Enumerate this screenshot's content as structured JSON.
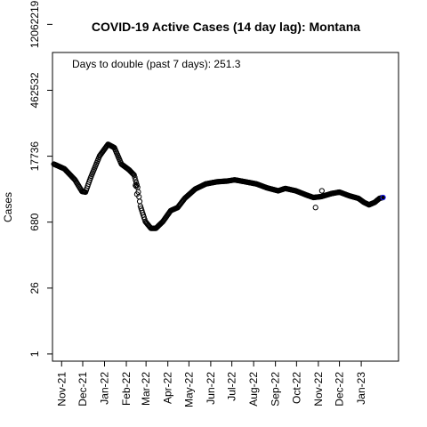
{
  "chart_data": {
    "type": "scatter",
    "title": "COVID-19 Active Cases (14 day lag): Montana",
    "annotation": "Days to double (past 7 days): 251.3",
    "xlabel": "",
    "ylabel": "Cases",
    "y_scale": "log",
    "ylim": [
      0.7,
      3000000
    ],
    "y_ticks": [
      1,
      26,
      680,
      17736,
      462532,
      12062219
    ],
    "x_range": [
      "2021-10-19",
      "2023-02-23"
    ],
    "x_ticks": [
      {
        "date": "2021-11-01",
        "label": "Nov-21"
      },
      {
        "date": "2021-12-01",
        "label": "Dec-21"
      },
      {
        "date": "2022-01-01",
        "label": "Jan-22"
      },
      {
        "date": "2022-02-01",
        "label": "Feb-22"
      },
      {
        "date": "2022-03-01",
        "label": "Mar-22"
      },
      {
        "date": "2022-04-01",
        "label": "Apr-22"
      },
      {
        "date": "2022-05-01",
        "label": "May-22"
      },
      {
        "date": "2022-06-01",
        "label": "Jun-22"
      },
      {
        "date": "2022-07-01",
        "label": "Jul-22"
      },
      {
        "date": "2022-08-01",
        "label": "Aug-22"
      },
      {
        "date": "2022-09-01",
        "label": "Sep-22"
      },
      {
        "date": "2022-10-01",
        "label": "Oct-22"
      },
      {
        "date": "2022-11-01",
        "label": "Nov-22"
      },
      {
        "date": "2022-12-01",
        "label": "Dec-22"
      },
      {
        "date": "2023-01-01",
        "label": "Jan-23"
      }
    ],
    "grid": false,
    "marker_color": "#000000",
    "last_point_color": "#1a1aff",
    "anchors": [
      [
        "2021-10-21",
        12000
      ],
      [
        "2021-11-05",
        9500
      ],
      [
        "2021-11-20",
        5500
      ],
      [
        "2021-11-30",
        3100
      ],
      [
        "2021-12-05",
        3000
      ],
      [
        "2021-12-12",
        6000
      ],
      [
        "2021-12-25",
        18000
      ],
      [
        "2022-01-06",
        32000
      ],
      [
        "2022-01-15",
        27000
      ],
      [
        "2022-01-25",
        12000
      ],
      [
        "2022-02-05",
        9000
      ],
      [
        "2022-02-12",
        7000
      ],
      [
        "2022-02-17",
        3800
      ],
      [
        "2022-02-21",
        1500
      ],
      [
        "2022-02-28",
        700
      ],
      [
        "2022-03-08",
        500
      ],
      [
        "2022-03-15",
        500
      ],
      [
        "2022-03-25",
        700
      ],
      [
        "2022-04-05",
        1200
      ],
      [
        "2022-04-15",
        1400
      ],
      [
        "2022-04-25",
        2200
      ],
      [
        "2022-05-10",
        3500
      ],
      [
        "2022-05-25",
        4500
      ],
      [
        "2022-06-10",
        5000
      ],
      [
        "2022-06-25",
        5200
      ],
      [
        "2022-07-05",
        5500
      ],
      [
        "2022-07-20",
        5000
      ],
      [
        "2022-08-05",
        4500
      ],
      [
        "2022-08-20",
        3700
      ],
      [
        "2022-09-05",
        3200
      ],
      [
        "2022-09-15",
        3600
      ],
      [
        "2022-09-30",
        3200
      ],
      [
        "2022-10-15",
        2600
      ],
      [
        "2022-10-25",
        2300
      ],
      [
        "2022-11-05",
        2400
      ],
      [
        "2022-11-20",
        2800
      ],
      [
        "2022-12-01",
        3000
      ],
      [
        "2022-12-15",
        2500
      ],
      [
        "2022-12-28",
        2200
      ],
      [
        "2023-01-05",
        1800
      ],
      [
        "2023-01-12",
        1600
      ],
      [
        "2023-01-20",
        1800
      ],
      [
        "2023-01-27",
        2200
      ],
      [
        "2023-02-01",
        2300
      ]
    ],
    "outliers": [
      [
        "2022-02-14",
        4200
      ],
      [
        "2022-02-15",
        4000
      ],
      [
        "2022-02-16",
        2700
      ],
      [
        "2022-10-28",
        1400
      ],
      [
        "2022-11-06",
        3200
      ]
    ]
  }
}
